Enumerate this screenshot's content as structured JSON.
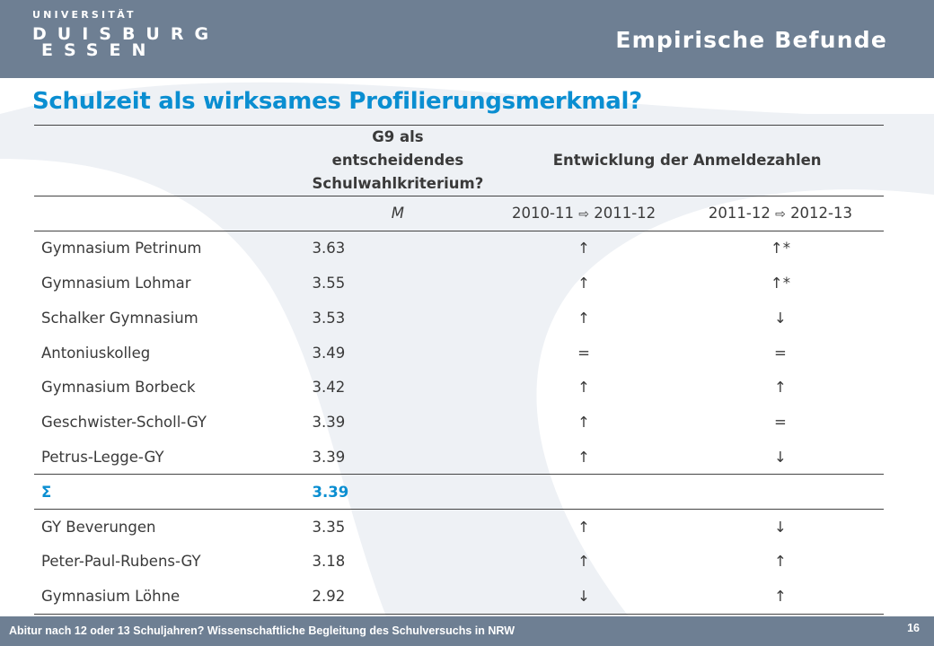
{
  "header": {
    "logo_line1": "UNIVERSITÄT",
    "logo_line2": "DUISBURG",
    "logo_line3": "ESSEN",
    "section_title": "Empirische Befunde"
  },
  "slide": {
    "title": "Schulzeit als wirksames Profilierungsmerkmal?"
  },
  "table": {
    "head_g9_line1": "G9 als entscheidendes",
    "head_g9_line2": "Schulwahlkriterium?",
    "head_entwicklung": "Entwicklung der Anmeldezahlen",
    "subhead_m": "M",
    "subhead_a_from": "2010-11",
    "subhead_a_to": "2011-12",
    "subhead_b_from": "2011-12",
    "subhead_b_to": "2012-13",
    "arrow_open": "⇨",
    "rows_upper": [
      {
        "name": "Gymnasium Petrinum",
        "m": "3.63",
        "a": "↑",
        "b": "↑*"
      },
      {
        "name": "Gymnasium Lohmar",
        "m": "3.55",
        "a": "↑",
        "b": "↑*"
      },
      {
        "name": "Schalker Gymnasium",
        "m": "3.53",
        "a": "↑",
        "b": "↓"
      },
      {
        "name": "Antoniuskolleg",
        "m": "3.49",
        "a": "=",
        "b": "="
      },
      {
        "name": "Gymnasium Borbeck",
        "m": "3.42",
        "a": "↑",
        "b": "↑"
      },
      {
        "name": "Geschwister-Scholl-GY",
        "m": "3.39",
        "a": "↑",
        "b": "="
      },
      {
        "name": "Petrus-Legge-GY",
        "m": "3.39",
        "a": "↑",
        "b": "↓"
      }
    ],
    "sum_row": {
      "name": "Σ",
      "m": "3.39"
    },
    "rows_lower": [
      {
        "name": "GY Beverungen",
        "m": "3.35",
        "a": "↑",
        "b": "↓"
      },
      {
        "name": "Peter-Paul-Rubens-GY",
        "m": "3.18",
        "a": "↑",
        "b": "↑"
      },
      {
        "name": "Gymnasium Löhne",
        "m": "2.92",
        "a": "↓",
        "b": "↑"
      }
    ]
  },
  "footer": {
    "text": "Abitur nach 12 oder 13 Schuljahren? Wissenschaftliche Begleitung des Schulversuchs in NRW",
    "page_number": "16"
  },
  "colors": {
    "band": "#6e7f93",
    "accent": "#0a8ed1"
  }
}
